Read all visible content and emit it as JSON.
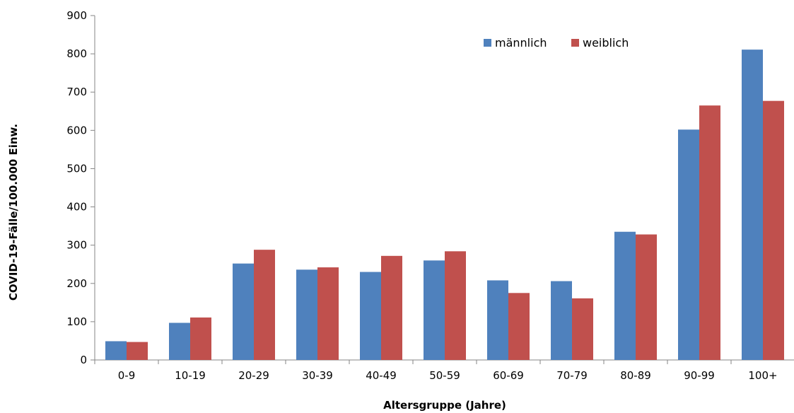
{
  "chart_data": {
    "type": "bar",
    "title": "",
    "xlabel": "Altersgruppe (Jahre)",
    "ylabel": "COVID-19-Fälle/100.000 Einw.",
    "ylim": [
      0,
      900
    ],
    "yticks": [
      0,
      100,
      200,
      300,
      400,
      500,
      600,
      700,
      800,
      900
    ],
    "categories": [
      "0-9",
      "10-19",
      "20-29",
      "30-39",
      "40-49",
      "50-59",
      "60-69",
      "70-79",
      "80-89",
      "90-99",
      "100+"
    ],
    "series": [
      {
        "name": "männlich",
        "color": "#4f81bd",
        "values": [
          49,
          97,
          252,
          236,
          230,
          260,
          208,
          206,
          335,
          602,
          811
        ]
      },
      {
        "name": "weiblich",
        "color": "#c0504d",
        "values": [
          47,
          111,
          288,
          242,
          272,
          284,
          175,
          161,
          328,
          665,
          677
        ]
      }
    ],
    "grid": false,
    "legend_position": "top-right"
  }
}
